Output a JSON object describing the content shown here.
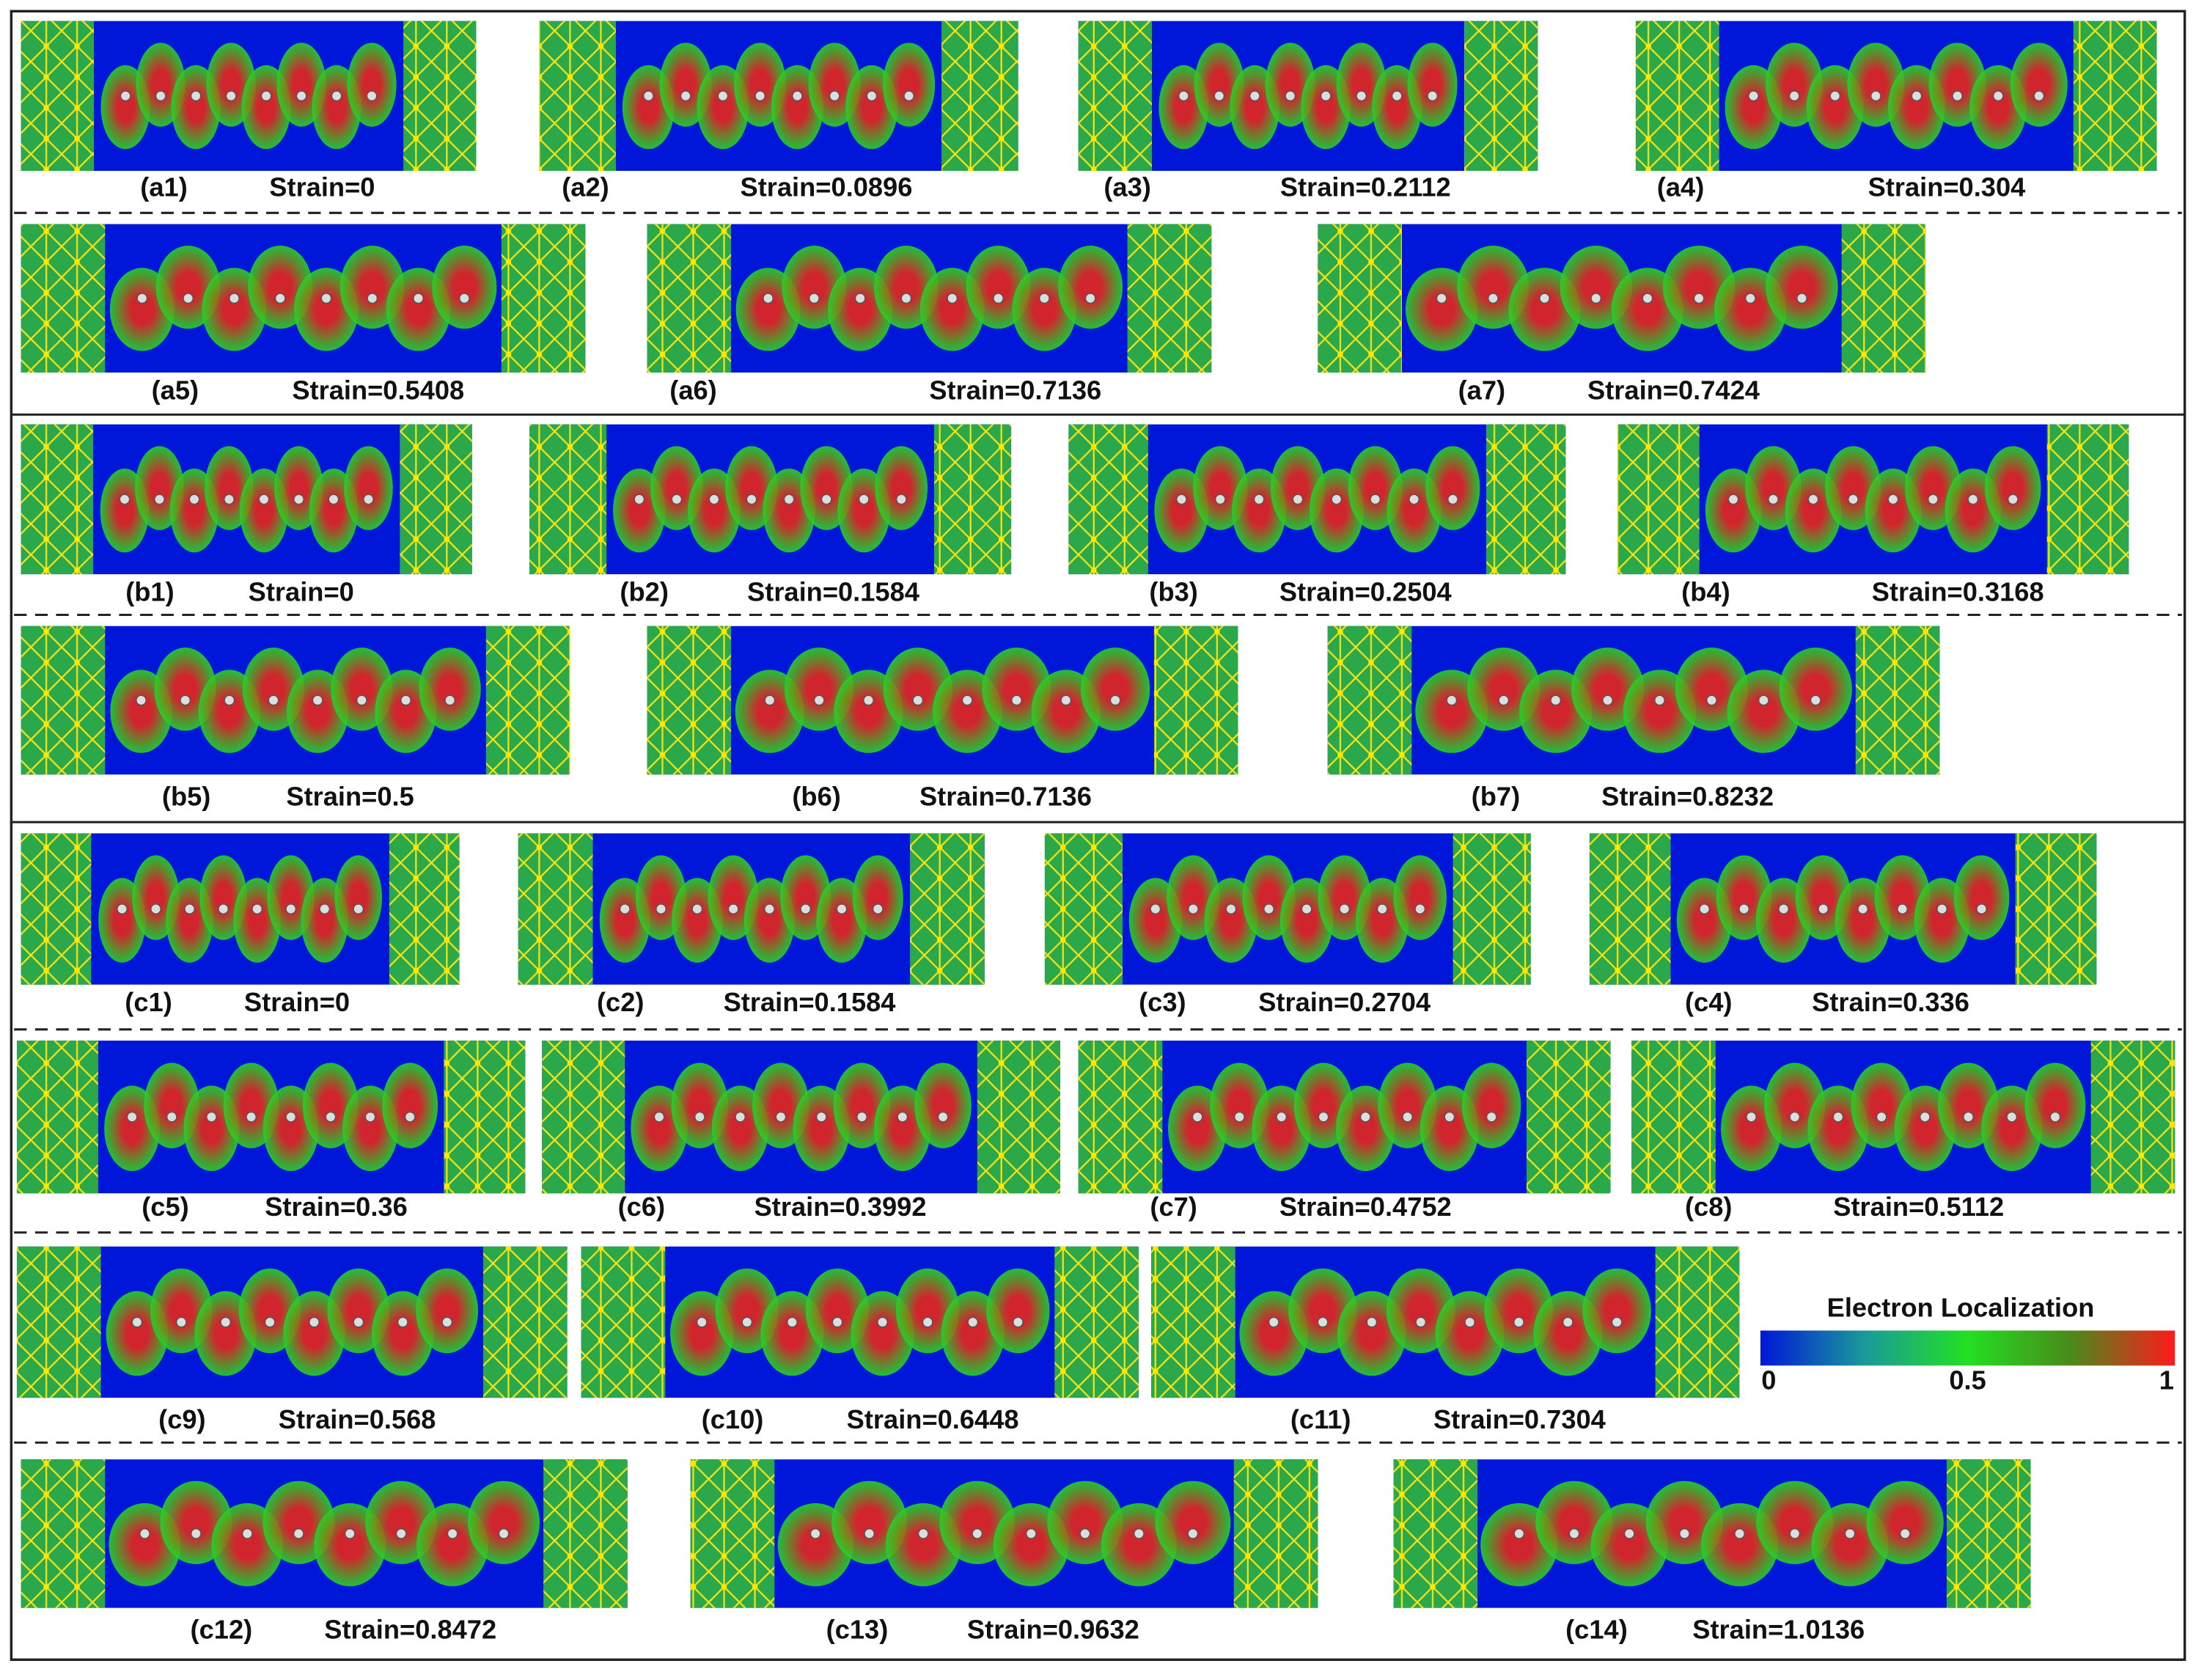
{
  "panels": [
    {
      "label": "(a1)",
      "caption": "Strain=0"
    },
    {
      "label": "(a2)",
      "caption": "Strain=0.0896"
    },
    {
      "label": "(a3)",
      "caption": "Strain=0.2112"
    },
    {
      "label": "(a4)",
      "caption": "Strain=0.304"
    },
    {
      "label": "(a5)",
      "caption": "Strain=0.5408"
    },
    {
      "label": "(a6)",
      "caption": "Strain=0.7136"
    },
    {
      "label": "(a7)",
      "caption": "Strain=0.7424"
    },
    {
      "label": "(b1)",
      "caption": "Strain=0"
    },
    {
      "label": "(b2)",
      "caption": "Strain=0.1584"
    },
    {
      "label": "(b3)",
      "caption": "Strain=0.2504"
    },
    {
      "label": "(b4)",
      "caption": "Strain=0.3168"
    },
    {
      "label": "(b5)",
      "caption": "Strain=0.5"
    },
    {
      "label": "(b6)",
      "caption": "Strain=0.7136"
    },
    {
      "label": "(b7)",
      "caption": "Strain=0.8232"
    },
    {
      "label": "(c1)",
      "caption": "Strain=0"
    },
    {
      "label": "(c2)",
      "caption": "Strain=0.1584"
    },
    {
      "label": "(c3)",
      "caption": "Strain=0.2704"
    },
    {
      "label": "(c4)",
      "caption": "Strain=0.336"
    },
    {
      "label": "(c5)",
      "caption": "Strain=0.36"
    },
    {
      "label": "(c6)",
      "caption": "Strain=0.3992"
    },
    {
      "label": "(c7)",
      "caption": "Strain=0.4752"
    },
    {
      "label": "(c8)",
      "caption": "Strain=0.5112"
    },
    {
      "label": "(c9)",
      "caption": "Strain=0.568"
    },
    {
      "label": "(c10)",
      "caption": "Strain=0.6448"
    },
    {
      "label": "(c11)",
      "caption": "Strain=0.7304"
    },
    {
      "label": "(c12)",
      "caption": "Strain=0.8472"
    },
    {
      "label": "(c13)",
      "caption": "Strain=0.9632"
    },
    {
      "label": "(c14)",
      "caption": "Strain=1.0136"
    }
  ],
  "colorbar": {
    "title": "Electron Localization",
    "clim": [
      0,
      1
    ],
    "ticks": [
      0,
      0.5,
      1
    ]
  }
}
